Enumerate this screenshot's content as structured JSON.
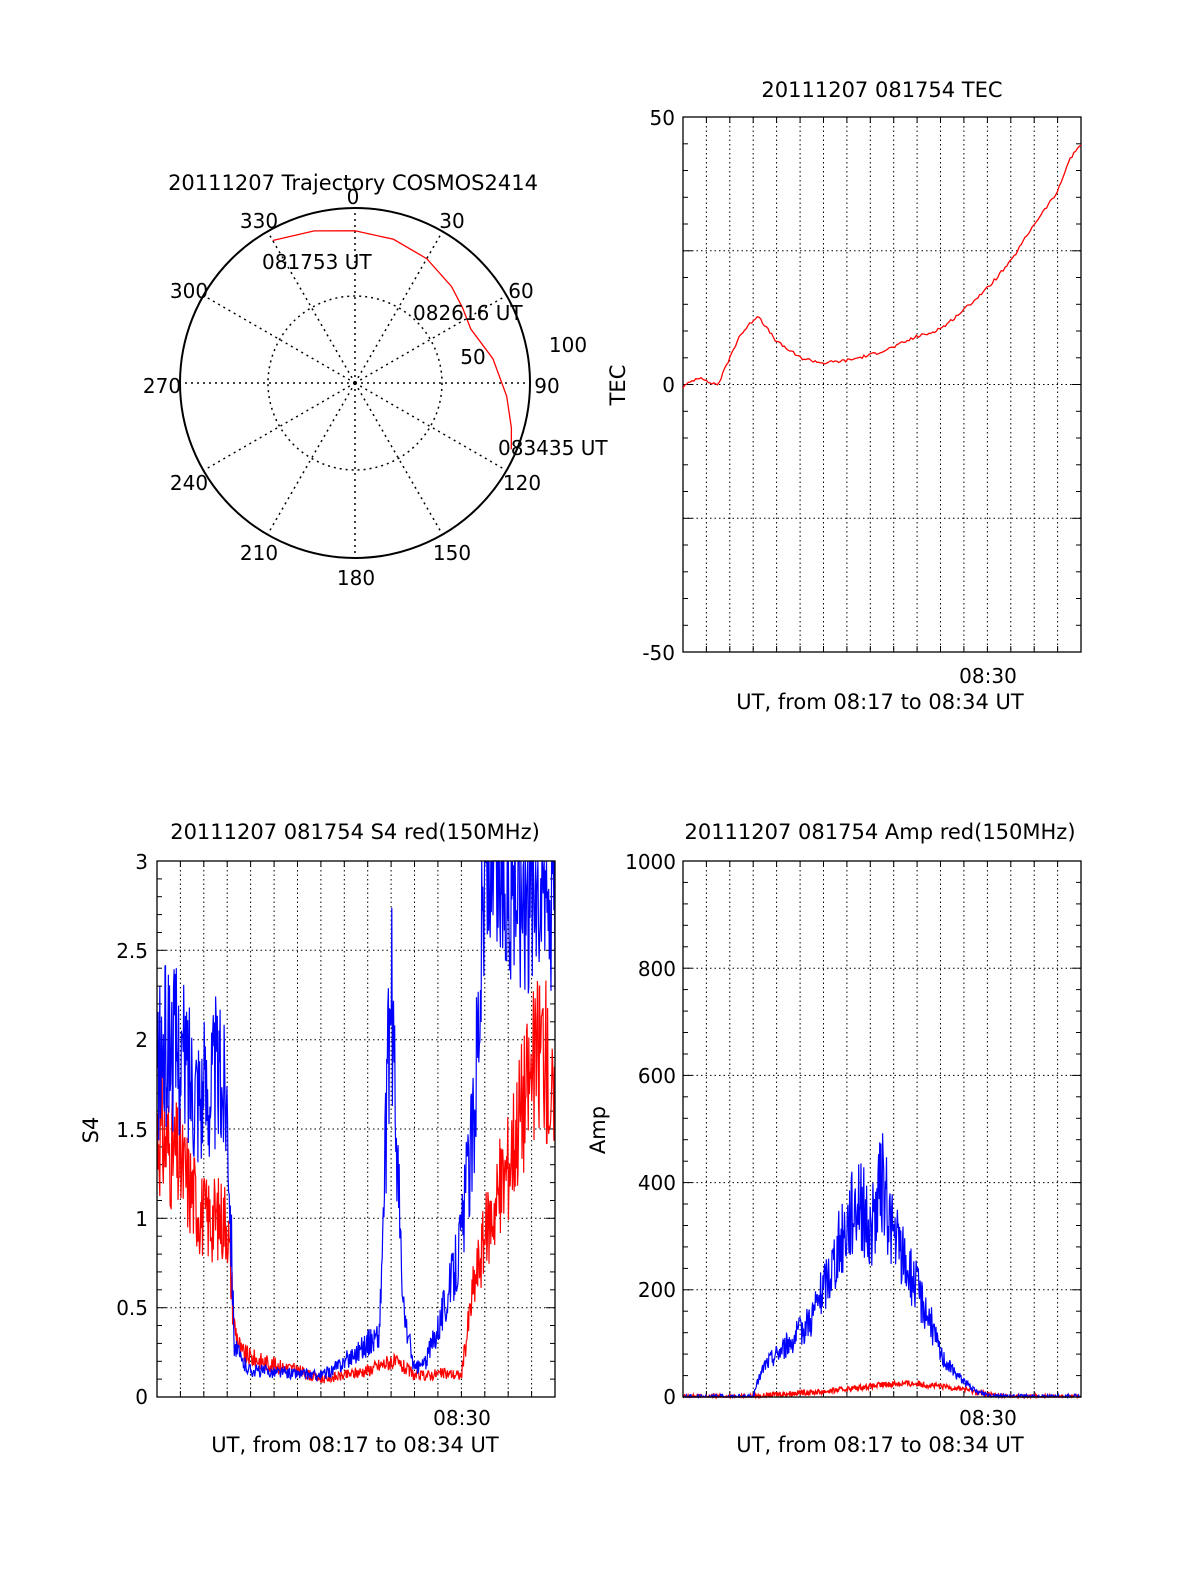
{
  "chart_data": [
    {
      "type": "polar",
      "title": "20111207 Trajectory COSMOS2414",
      "azimuth_labels": [
        "0",
        "30",
        "60",
        "90",
        "120",
        "150",
        "180",
        "210",
        "240",
        "270",
        "300",
        "330"
      ],
      "elevation_labels": [
        "50",
        "100"
      ],
      "series": [
        {
          "color": "#ff0000",
          "points": [
            {
              "az": 330,
              "el": 6
            },
            {
              "az": 345,
              "el": 10
            },
            {
              "az": 0,
              "el": 13
            },
            {
              "az": 15,
              "el": 15
            },
            {
              "az": 30,
              "el": 18
            },
            {
              "az": 45,
              "el": 22
            },
            {
              "az": 55,
              "el": 25
            },
            {
              "az": 65,
              "el": 27
            },
            {
              "az": 80,
              "el": 20
            },
            {
              "az": 95,
              "el": 13
            },
            {
              "az": 106,
              "el": 7
            },
            {
              "az": 113,
              "el": 3
            }
          ]
        }
      ],
      "annotations": [
        "081753 UT",
        "082616 UT",
        "083435 UT"
      ]
    },
    {
      "type": "line",
      "title": "20111207 081754 TEC",
      "xlabel": "UT, from 08:17 to 08:34 UT",
      "ylabel": "TEC",
      "xlim": [
        0,
        17
      ],
      "ylim": [
        -50,
        50
      ],
      "yticks": [
        "50",
        "0",
        "-50"
      ],
      "xtick_label": "08:30",
      "grid": true,
      "series": [
        {
          "color": "#ff0000",
          "x": [
            0,
            0.5,
            0.8,
            1,
            1.5,
            2,
            2.4,
            2.8,
            3.2,
            3.5,
            4,
            5,
            6,
            7,
            8,
            9,
            10,
            10.5,
            11.2,
            12,
            12.5,
            13,
            14,
            15,
            16,
            16.5,
            17
          ],
          "y": [
            -0.5,
            1,
            1.5,
            0.5,
            0,
            5,
            9,
            11,
            13,
            11,
            8,
            5,
            4,
            4.5,
            5.5,
            7,
            9,
            9.5,
            11,
            14,
            16,
            18,
            23,
            30,
            36,
            42,
            45
          ]
        }
      ]
    },
    {
      "type": "line",
      "title": "20111207 081754 S4 red(150MHz)",
      "xlabel": "UT, from 08:17 to 08:34 UT",
      "ylabel": "S4",
      "xlim": [
        0,
        17
      ],
      "ylim": [
        0,
        3
      ],
      "yticks": [
        "0",
        "0.5",
        "1",
        "1.5",
        "2",
        "2.5",
        "3"
      ],
      "xtick_label": "08:30",
      "grid": true,
      "series": [
        {
          "color": "#ff0000",
          "x": [
            0,
            1,
            2,
            3,
            3.3,
            3.6,
            4,
            5,
            6,
            7,
            8,
            9,
            10,
            10.5,
            11,
            11.5,
            12,
            12.5,
            13,
            13.5,
            14,
            14.5,
            15,
            15.5,
            16,
            16.5,
            17
          ],
          "y": [
            1.5,
            1.3,
            1.0,
            1.0,
            0.4,
            0.25,
            0.22,
            0.18,
            0.15,
            0.1,
            0.12,
            0.15,
            0.2,
            0.17,
            0.12,
            0.12,
            0.13,
            0.13,
            0.12,
            0.6,
            0.9,
            1.1,
            1.3,
            1.6,
            1.8,
            2.0,
            1.5
          ]
        },
        {
          "color": "#0000ff",
          "x": [
            0,
            0.5,
            1,
            1.5,
            2,
            2.5,
            3,
            3.3,
            3.6,
            4,
            5,
            6,
            7,
            7.5,
            8,
            9,
            9.5,
            10,
            10.5,
            11,
            11.5,
            12,
            12.5,
            13,
            13.5,
            14,
            15,
            16,
            17
          ],
          "y": [
            1.8,
            2.0,
            1.9,
            1.8,
            1.7,
            1.8,
            1.7,
            0.3,
            0.2,
            0.15,
            0.14,
            0.13,
            0.12,
            0.15,
            0.2,
            0.3,
            0.35,
            2.3,
            0.5,
            0.15,
            0.2,
            0.4,
            0.6,
            0.9,
            1.5,
            3.0,
            3.0,
            3.0,
            3.0
          ]
        }
      ]
    },
    {
      "type": "line",
      "title": "20111207 081754 Amp red(150MHz)",
      "xlabel": "UT, from 08:17 to 08:34 UT",
      "ylabel": "Amp",
      "xlim": [
        0,
        17
      ],
      "ylim": [
        0,
        1000
      ],
      "yticks": [
        "0",
        "200",
        "400",
        "600",
        "800",
        "1000"
      ],
      "xtick_label": "08:30",
      "grid": true,
      "series": [
        {
          "color": "#ff0000",
          "x": [
            0,
            2,
            3,
            3.5,
            4,
            5,
            6,
            7,
            8,
            9,
            10,
            11,
            12,
            13,
            14,
            15,
            16,
            17
          ],
          "y": [
            0,
            0,
            0,
            2,
            5,
            8,
            10,
            15,
            20,
            25,
            25,
            20,
            15,
            5,
            0,
            0,
            0,
            0
          ]
        },
        {
          "color": "#0000ff",
          "x": [
            0,
            2,
            3,
            3.2,
            3.5,
            4,
            4.5,
            5,
            5.5,
            6,
            6.5,
            7,
            7.5,
            8,
            8.5,
            9,
            9.5,
            10,
            10.5,
            11,
            11.5,
            12,
            12.5,
            13,
            14,
            15,
            16,
            17
          ],
          "y": [
            0,
            0,
            0,
            30,
            60,
            80,
            100,
            120,
            150,
            200,
            260,
            320,
            380,
            300,
            400,
            300,
            250,
            200,
            150,
            80,
            50,
            30,
            10,
            5,
            0,
            0,
            0,
            0
          ]
        }
      ]
    }
  ],
  "labels": {
    "a1": "081753 UT",
    "a2": "082616 UT",
    "a3": "083435 UT"
  }
}
